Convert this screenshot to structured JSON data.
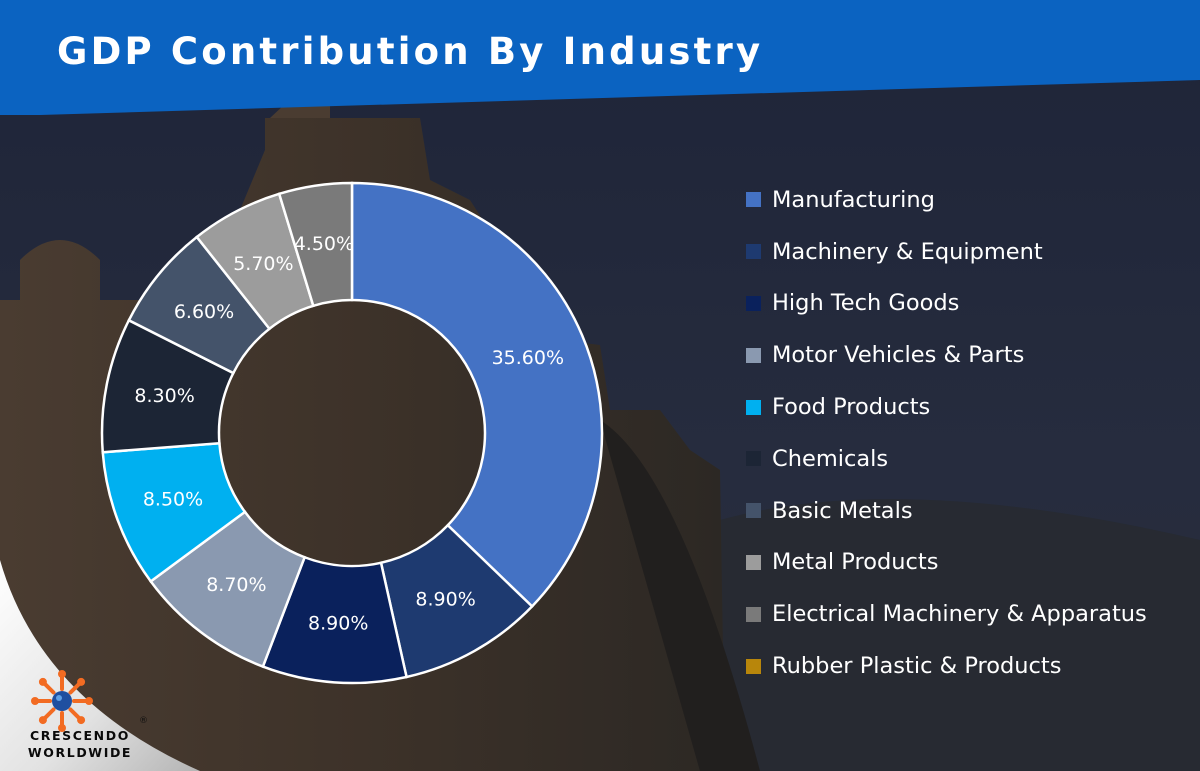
{
  "title": "GDP Contribution By Industry",
  "brand": {
    "line1": "CRESCENDO",
    "line2": "WORLDWIDE",
    "registered": "®"
  },
  "colors": {
    "title_band": "#0b63c1",
    "manufacturing": "#4472c4",
    "machinery": "#1e3a70",
    "high_tech": "#0a215c",
    "motor_vehicles": "#8a99b0",
    "food": "#00b0f0",
    "chemicals": "#1c2535",
    "basic_metals": "#44536a",
    "metal_products": "#9c9c9c",
    "electrical": "#7a7a7a",
    "rubber": "#b8860b",
    "logo_orange": "#f26b22",
    "logo_blue": "#1f4fa0"
  },
  "chart_data": {
    "type": "pie",
    "variant": "doughnut",
    "title": "GDP Contribution By Industry",
    "slices": [
      {
        "label": "Manufacturing",
        "value": 35.6,
        "display": "35.60%",
        "color": "#4472c4"
      },
      {
        "label": "Machinery & Equipment",
        "value": 8.9,
        "display": "8.90%",
        "color": "#1e3a70"
      },
      {
        "label": "High Tech Goods",
        "value": 8.9,
        "display": "8.90%",
        "color": "#0a215c"
      },
      {
        "label": "Motor Vehicles & Parts",
        "value": 8.7,
        "display": "8.70%",
        "color": "#8a99b0"
      },
      {
        "label": "Food Products",
        "value": 8.5,
        "display": "8.50%",
        "color": "#00b0f0"
      },
      {
        "label": "Chemicals",
        "value": 8.3,
        "display": "8.30%",
        "color": "#1c2535"
      },
      {
        "label": "Basic Metals",
        "value": 6.6,
        "display": "6.60%",
        "color": "#44536a"
      },
      {
        "label": "Metal Products",
        "value": 5.7,
        "display": "5.70%",
        "color": "#9c9c9c"
      },
      {
        "label": "Electrical Machinery & Apparatus",
        "value": 4.5,
        "display": "4.50%",
        "color": "#7a7a7a"
      },
      {
        "label": "Rubber Plastic & Products",
        "value": 0,
        "display": "",
        "color": "#b8860b"
      }
    ],
    "legend": {
      "position": "right",
      "items": [
        {
          "label": "Manufacturing",
          "color": "#4472c4"
        },
        {
          "label": "Machinery & Equipment",
          "color": "#1e3a70"
        },
        {
          "label": "High Tech Goods",
          "color": "#0a215c"
        },
        {
          "label": "Motor Vehicles & Parts",
          "color": "#8a99b0"
        },
        {
          "label": "Food Products",
          "color": "#00b0f0"
        },
        {
          "label": "Chemicals",
          "color": "#1c2535"
        },
        {
          "label": "Basic Metals",
          "color": "#44536a"
        },
        {
          "label": "Metal Products",
          "color": "#9c9c9c"
        },
        {
          "label": "Electrical Machinery & Apparatus",
          "color": "#7a7a7a"
        },
        {
          "label": "Rubber Plastic & Products",
          "color": "#b8860b"
        }
      ]
    }
  }
}
